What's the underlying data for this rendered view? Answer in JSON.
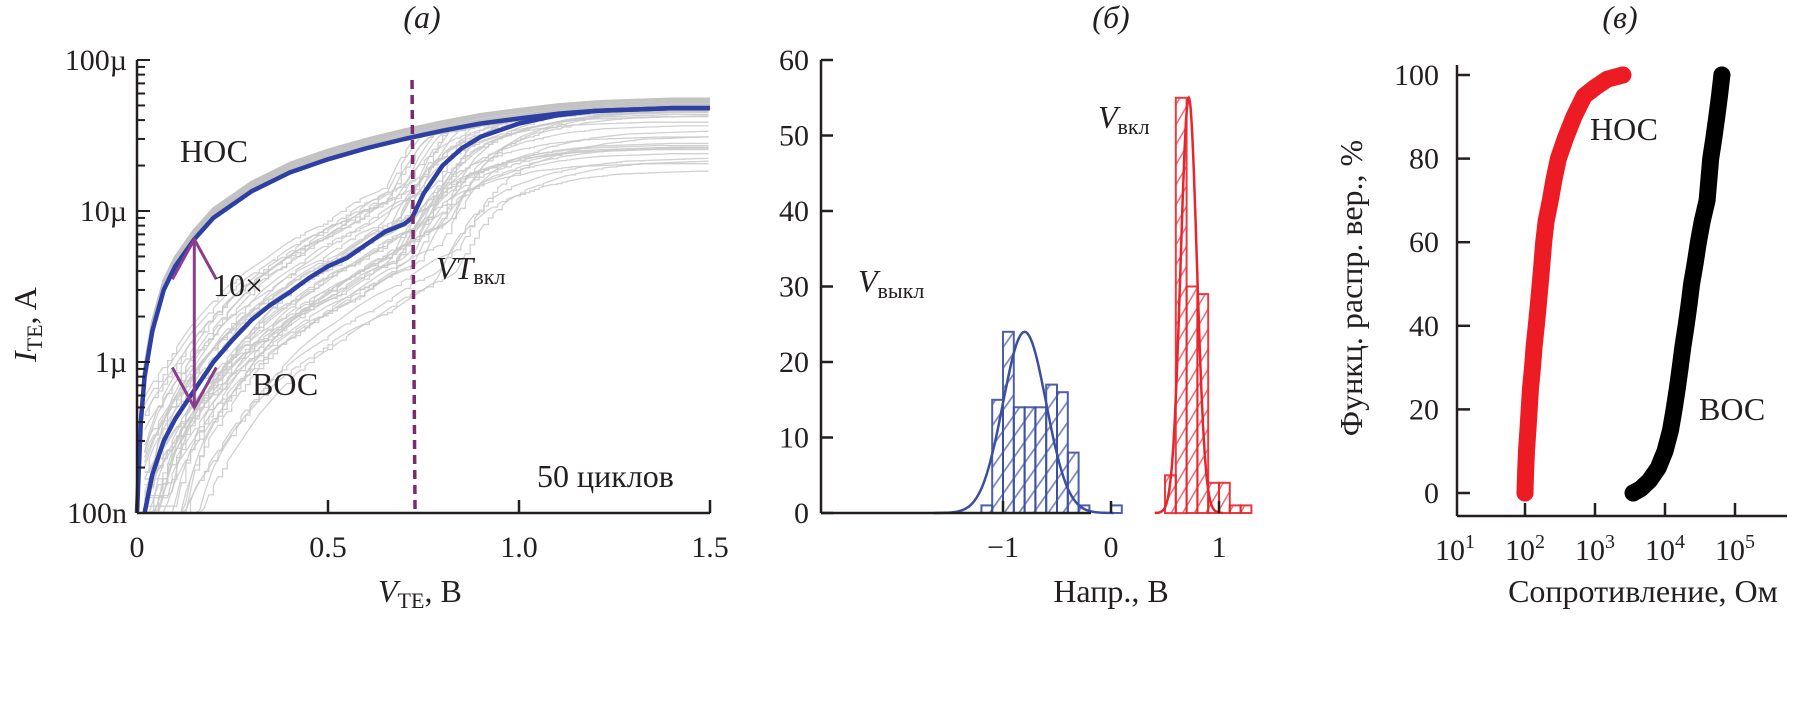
{
  "figure": {
    "panels": [
      "(a)",
      "(б)",
      "(в)"
    ]
  },
  "chart_data": [
    {
      "id": "a",
      "type": "line",
      "panel_label": "(a)",
      "title": "",
      "xlabel": "V",
      "xlabel_sub": "TE",
      "xlabel_unit": ", В",
      "ylabel": "I",
      "ylabel_sub": "TE",
      "ylabel_unit": ", A",
      "xlim": [
        0,
        1.5
      ],
      "ylim": [
        1e-07,
        0.0001
      ],
      "yscale": "log",
      "x_ticks": [
        0,
        0.5,
        1.0,
        1.5
      ],
      "x_tick_labels": [
        "0",
        "0.5",
        "1.0",
        "1.5"
      ],
      "y_ticks": [
        1e-07,
        1e-06,
        1e-05,
        0.0001
      ],
      "y_tick_labels": [
        "100n",
        "1µ",
        "10µ",
        "100µ"
      ],
      "grid": false,
      "annotations": {
        "lrs": "НОС",
        "hrs": "ВОС",
        "ratio": "10×",
        "vt_main": "VT",
        "vt_sub": "вкл",
        "cycles": "50 циклов"
      },
      "vt_on_voltage": 0.72,
      "ratio_arrow": {
        "x": 0.15,
        "y_top": 6.5e-06,
        "y_bottom": 5e-07
      },
      "colors": {
        "mean_curve": "#2e3fa3",
        "cycle_curves": "#c8c8c8",
        "vt_line": "#7a2a6e",
        "arrow": "#8a3d8a"
      },
      "series": [
        {
          "name": "НОС (среднее)",
          "x": [
            0.0,
            0.01,
            0.02,
            0.04,
            0.07,
            0.1,
            0.15,
            0.2,
            0.3,
            0.4,
            0.5,
            0.6,
            0.7,
            0.8,
            0.9,
            1.0,
            1.1,
            1.2,
            1.3,
            1.4,
            1.5
          ],
          "y": [
            1e-07,
            4e-07,
            8e-07,
            1.6e-06,
            3e-06,
            4.3e-06,
            6.5e-06,
            9e-06,
            1.35e-05,
            1.8e-05,
            2.2e-05,
            2.6e-05,
            3e-05,
            3.4e-05,
            3.8e-05,
            4.1e-05,
            4.4e-05,
            4.6e-05,
            4.7e-05,
            4.8e-05,
            4.8e-05
          ]
        },
        {
          "name": "ВОС (среднее)",
          "x": [
            0.02,
            0.04,
            0.07,
            0.1,
            0.15,
            0.2,
            0.25,
            0.3,
            0.35,
            0.4,
            0.45,
            0.5,
            0.55,
            0.6,
            0.65,
            0.7,
            0.72,
            0.75,
            0.8,
            0.85,
            0.9,
            1.0,
            1.1,
            1.2,
            1.3,
            1.4,
            1.5
          ],
          "y": [
            1e-07,
            1.8e-07,
            3e-07,
            4.2e-07,
            6.5e-07,
            1e-06,
            1.4e-06,
            1.9e-06,
            2.4e-06,
            2.9e-06,
            3.6e-06,
            4.3e-06,
            4.9e-06,
            6e-06,
            7.3e-06,
            8.2e-06,
            9e-06,
            1.3e-05,
            2e-05,
            2.6e-05,
            3.1e-05,
            3.8e-05,
            4.3e-05,
            4.6e-05,
            4.7e-05,
            4.8e-05,
            4.8e-05
          ]
        }
      ]
    },
    {
      "id": "b",
      "type": "bar",
      "subtype": "histogram",
      "panel_label": "(б)",
      "title": "",
      "xlabel": "Напр., В",
      "ylabel": "",
      "xlim": [
        -1.5,
        1.5
      ],
      "ylim": [
        0,
        60
      ],
      "x_ticks": [
        -1,
        0,
        1
      ],
      "x_tick_labels": [
        "−1",
        "0",
        "1"
      ],
      "y_ticks": [
        0,
        10,
        20,
        30,
        40,
        50,
        60
      ],
      "y_tick_labels": [
        "0",
        "10",
        "20",
        "30",
        "40",
        "50",
        "60"
      ],
      "grid": false,
      "bin_width": 0.1,
      "series": [
        {
          "name": "V выкл",
          "label_main": "V",
          "label_sub": "выкл",
          "color": "#3b4ea0",
          "bin_starts": [
            -1.2,
            -1.1,
            -1.0,
            -0.9,
            -0.8,
            -0.7,
            -0.6,
            -0.5,
            -0.4,
            -0.3,
            0.0
          ],
          "values": [
            1,
            15,
            24,
            14,
            14,
            14,
            17,
            16,
            8,
            1,
            1
          ],
          "fit": {
            "mean": -0.8,
            "sigma": 0.2,
            "peak": 24
          }
        },
        {
          "name": "V вкл",
          "label_main": "V",
          "label_sub": "вкл",
          "color": "#e8252d",
          "bin_starts": [
            0.5,
            0.6,
            0.7,
            0.8,
            0.9,
            1.0,
            1.1,
            1.2
          ],
          "values": [
            5,
            55,
            30,
            29,
            4,
            4,
            1,
            1
          ],
          "fit": {
            "mean": 0.72,
            "sigma": 0.075,
            "peak": 55
          }
        }
      ]
    },
    {
      "id": "c",
      "type": "scatter",
      "panel_label": "(в)",
      "title": "",
      "xlabel": "Сопротивление, Ом",
      "ylabel": "Функц. распр. вер., %",
      "xscale": "log",
      "xlim": [
        10,
        500000
      ],
      "ylim": [
        -5,
        100
      ],
      "x_ticks": [
        10,
        100,
        1000,
        10000,
        100000
      ],
      "x_tick_labels": [
        {
          "base": "10",
          "exp": "1"
        },
        {
          "base": "10",
          "exp": "2"
        },
        {
          "base": "10",
          "exp": "3"
        },
        {
          "base": "10",
          "exp": "4"
        },
        {
          "base": "10",
          "exp": "5"
        }
      ],
      "y_ticks": [
        0,
        20,
        40,
        60,
        80,
        100
      ],
      "y_tick_labels": [
        "0",
        "20",
        "40",
        "60",
        "80",
        "100"
      ],
      "grid": false,
      "series": [
        {
          "name": "НОС",
          "color": "#ed1c24",
          "x": [
            100,
            102,
            105,
            110,
            115,
            120,
            128,
            135,
            145,
            155,
            165,
            175,
            185,
            200,
            230,
            260,
            300,
            380,
            500,
            700,
            1000,
            1500,
            2500
          ],
          "y": [
            0,
            5,
            10,
            15,
            20,
            25,
            30,
            35,
            40,
            45,
            50,
            55,
            60,
            65,
            70,
            75,
            80,
            85,
            90,
            95,
            97,
            99,
            100
          ]
        },
        {
          "name": "ВОС",
          "color": "#000000",
          "x": [
            3500,
            4500,
            6000,
            8000,
            10000,
            12000,
            13500,
            15000,
            16500,
            18000,
            20000,
            22000,
            24000,
            27000,
            30000,
            34000,
            40000,
            45000,
            50000,
            55000,
            60000,
            65000
          ],
          "y": [
            0,
            1,
            3,
            6,
            10,
            15,
            20,
            25,
            30,
            35,
            40,
            45,
            50,
            55,
            60,
            65,
            70,
            80,
            85,
            90,
            95,
            100
          ]
        }
      ],
      "annotations": {
        "lrs": "НОС",
        "hrs": "ВОС"
      }
    }
  ]
}
